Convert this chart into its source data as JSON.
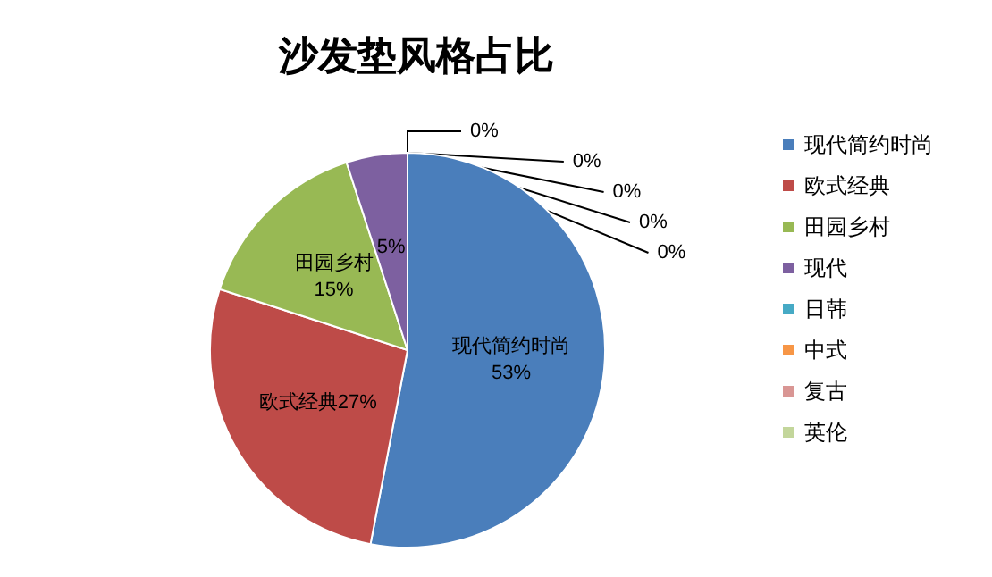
{
  "chart_data": {
    "type": "pie",
    "title": "沙发垫风格占比",
    "categories": [
      "现代简约时尚",
      "欧式经典",
      "田园乡村",
      "现代",
      "日韩",
      "中式",
      null,
      "复古",
      "英伦"
    ],
    "values": [
      53,
      27,
      15,
      5,
      0,
      0,
      0,
      0,
      0
    ],
    "colors": [
      "#4a7ebb",
      "#be4b48",
      "#98b954",
      "#7d60a0",
      "#46aac5",
      "#f79646",
      "#95b3d7",
      "#d99694",
      "#c3d69b"
    ],
    "value_labels": [
      "现代简约时尚\n53%",
      "欧式经典27%",
      "田园乡村\n15%",
      "5%",
      "0%",
      "0%",
      "0%",
      "0%",
      "0%"
    ],
    "legend": "right"
  }
}
